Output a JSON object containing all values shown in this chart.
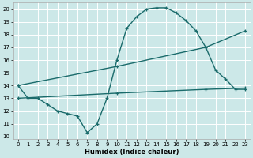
{
  "line1_x": [
    0,
    1,
    2,
    3,
    4,
    5,
    6,
    7,
    8,
    9,
    10,
    11,
    12,
    13,
    14,
    15,
    16,
    17,
    18,
    19,
    20,
    21,
    22,
    23
  ],
  "line1_y": [
    14.0,
    13.0,
    13.0,
    12.5,
    12.0,
    11.8,
    11.6,
    10.3,
    11.0,
    13.0,
    16.0,
    18.5,
    19.4,
    20.0,
    20.1,
    20.1,
    19.7,
    19.1,
    18.3,
    17.0,
    15.2,
    14.5,
    13.7,
    13.7
  ],
  "line2_x": [
    0,
    10,
    19,
    23
  ],
  "line2_y": [
    14.0,
    15.5,
    17.0,
    18.3
  ],
  "line3_x": [
    0,
    10,
    19,
    23
  ],
  "line3_y": [
    13.0,
    13.4,
    13.7,
    13.8
  ],
  "line_color": "#1a6b6b",
  "bg_color": "#cce8e8",
  "grid_color": "#ffffff",
  "xlabel": "Humidex (Indice chaleur)",
  "xlim": [
    -0.5,
    23.5
  ],
  "ylim": [
    9.8,
    20.5
  ],
  "xticks": [
    0,
    1,
    2,
    3,
    4,
    5,
    6,
    7,
    8,
    9,
    10,
    11,
    12,
    13,
    14,
    15,
    16,
    17,
    18,
    19,
    20,
    21,
    22,
    23
  ],
  "yticks": [
    10,
    11,
    12,
    13,
    14,
    15,
    16,
    17,
    18,
    19,
    20
  ],
  "marker": "+",
  "markersize": 3.5,
  "linewidth": 1.0
}
